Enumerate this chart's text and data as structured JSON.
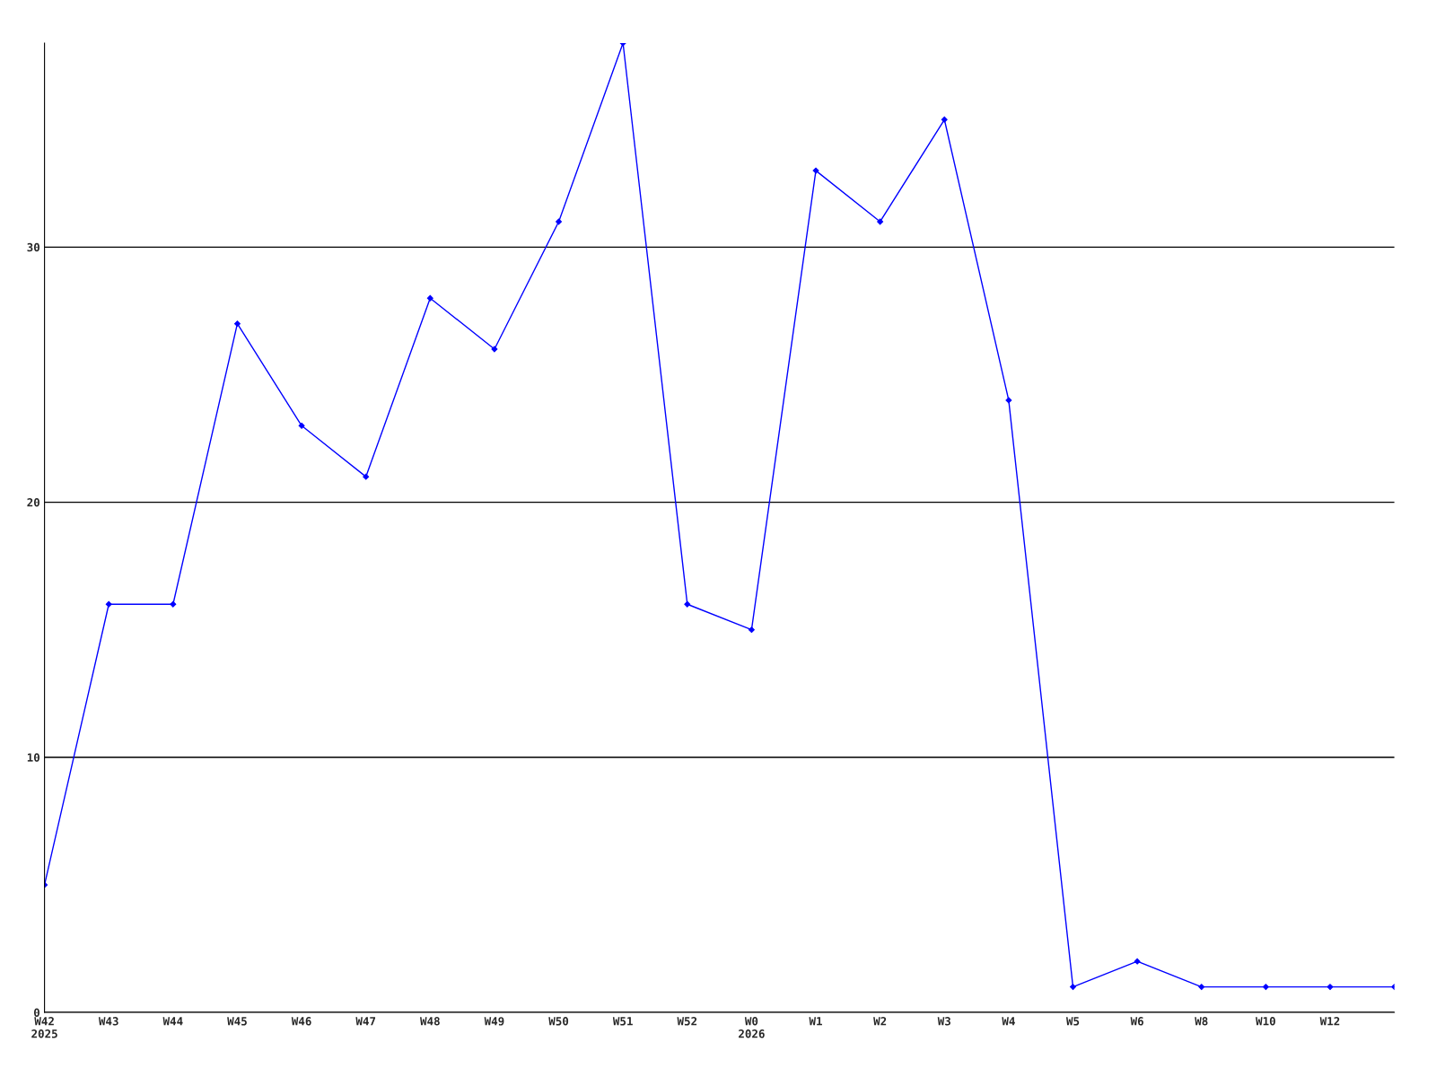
{
  "chart_data": {
    "type": "line",
    "categories": [
      "W42\n2025",
      "W43",
      "W44",
      "W45",
      "W46",
      "W47",
      "W48",
      "W49",
      "W50",
      "W51",
      "W52",
      "W0\n2026",
      "W1",
      "W2",
      "W3",
      "W4",
      "W5",
      "W6",
      "W8",
      "W10",
      "W12",
      null
    ],
    "series": [
      {
        "color": "#0000ff",
        "values": [
          5,
          16,
          16,
          27,
          23,
          21,
          28,
          26,
          31,
          38,
          16,
          15,
          33,
          31,
          35,
          24,
          1,
          2,
          1,
          1,
          1,
          1
        ]
      }
    ],
    "ylim": [
      0,
      38
    ],
    "yticks": [
      0,
      10,
      20,
      30
    ],
    "grid": "y",
    "marker": "diamond",
    "line_style": "solid"
  }
}
